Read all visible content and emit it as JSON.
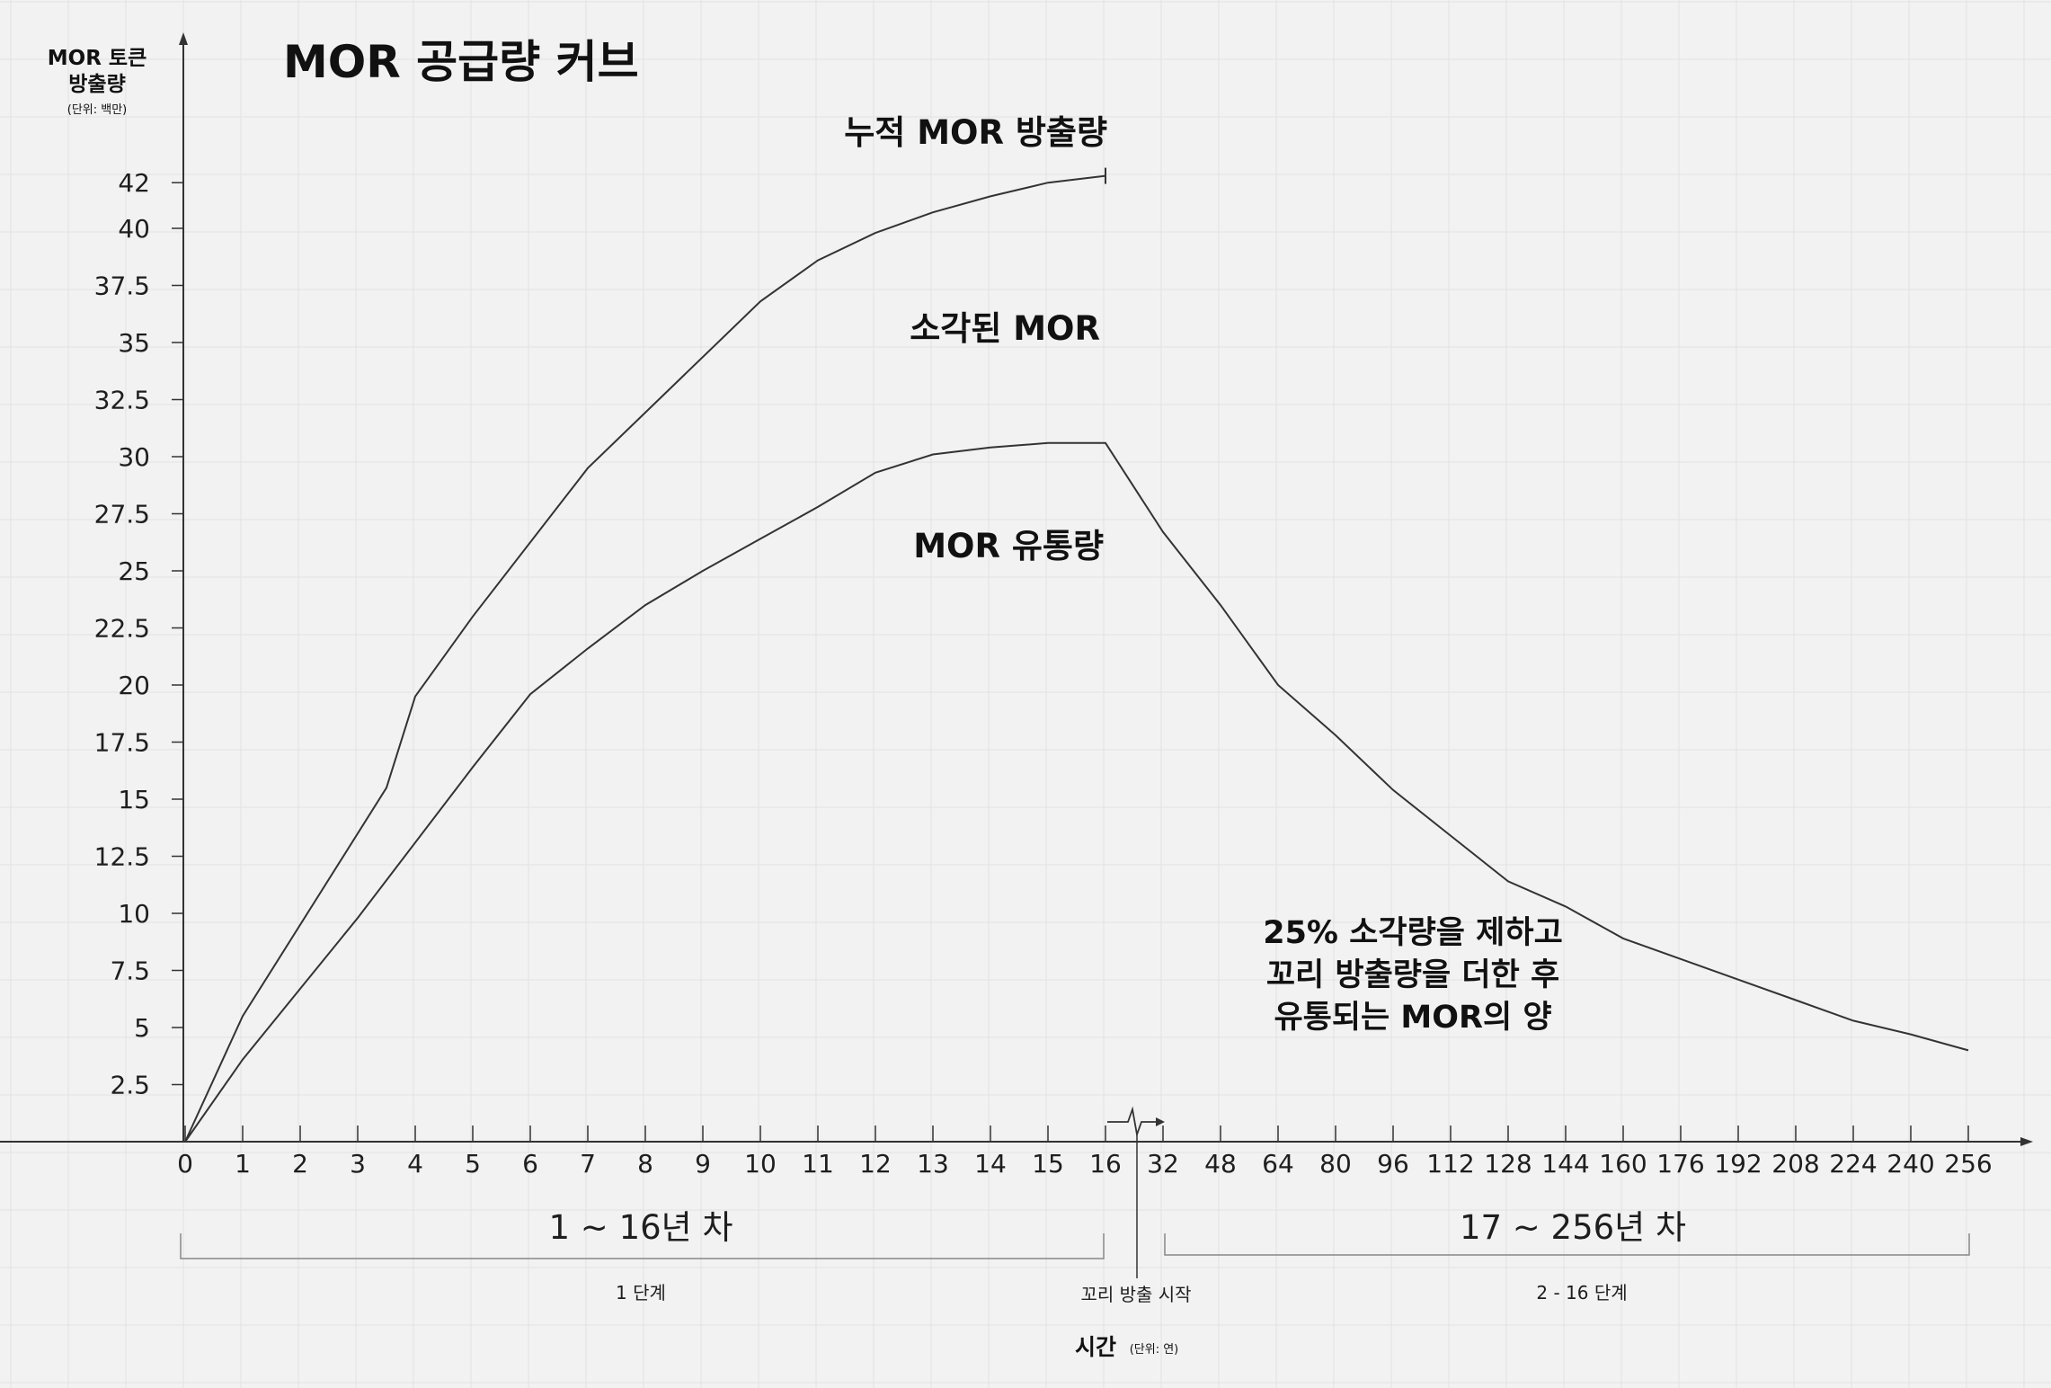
{
  "chart_data": {
    "type": "line",
    "title": "MOR 공급량 커브",
    "ylabel": [
      "MOR 토큰",
      "방출량"
    ],
    "ylabel_unit": "(단위: 백만)",
    "xlabel": "시간",
    "xlabel_unit": "(단위: 연)",
    "ylim": [
      0,
      42
    ],
    "y_ticks": [
      "2.5",
      "5",
      "7.5",
      "10",
      "12.5",
      "15",
      "17.5",
      "20",
      "22.5",
      "25",
      "27.5",
      "30",
      "32.5",
      "35",
      "37.5",
      "40",
      "42"
    ],
    "x_ticks_phase1": [
      "0",
      "1",
      "2",
      "3",
      "4",
      "5",
      "6",
      "7",
      "8",
      "9",
      "10",
      "11",
      "12",
      "13",
      "14",
      "15",
      "16"
    ],
    "x_ticks_phase2": [
      "32",
      "48",
      "64",
      "80",
      "96",
      "112",
      "128",
      "144",
      "160",
      "176",
      "192",
      "208",
      "224",
      "240",
      "256"
    ],
    "axis_break_after_x": 16,
    "grid": true,
    "series": [
      {
        "name": "누적 MOR 방출량",
        "x": [
          0,
          1,
          3.5,
          4,
          5,
          7,
          10,
          11,
          12,
          13,
          14,
          15,
          16
        ],
        "y": [
          0,
          5.5,
          15.5,
          19.5,
          23,
          29.5,
          36.8,
          38.6,
          39.8,
          40.7,
          41.4,
          42.0,
          42.3
        ]
      },
      {
        "name": "MOR 유통량",
        "x": [
          0,
          1,
          3,
          5,
          6,
          7,
          8,
          9,
          10,
          11,
          12,
          13,
          14,
          15,
          15.3,
          16,
          32,
          48,
          64,
          80,
          96,
          112,
          128,
          144,
          160,
          176,
          192,
          208,
          224,
          240,
          256
        ],
        "y": [
          0,
          3.6,
          9.8,
          16.4,
          19.6,
          21.6,
          23.5,
          25.0,
          26.4,
          27.8,
          29.3,
          30.1,
          30.4,
          30.6,
          30.6,
          30.6,
          26.7,
          23.5,
          20.0,
          17.8,
          15.4,
          13.4,
          11.4,
          10.3,
          8.9,
          8.0,
          7.1,
          6.2,
          5.3,
          4.7,
          4.0
        ]
      }
    ],
    "series_labels": {
      "cumulative": "누적 MOR 방출량",
      "burned": "소각된 MOR",
      "circulating": "MOR 유통량"
    },
    "annotation": [
      "25% 소각량을 제하고",
      "꼬리 방출량을 더한 후",
      "유통되는 MOR의 양"
    ],
    "phases": [
      {
        "range": "1 ~ 16년 차",
        "name": "1 단계"
      },
      {
        "range": "17 ~ 256년 차",
        "name": "2 - 16 단계"
      }
    ],
    "tail_start": "꼬리 방출 시작",
    "colors": {
      "line": "#333333",
      "background": "#f2f2f2",
      "grid": "#e2e2e2"
    }
  }
}
